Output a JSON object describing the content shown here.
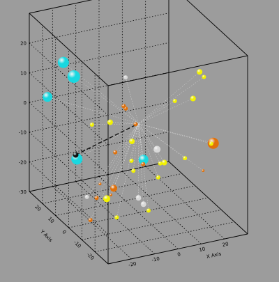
{
  "chart_data": {
    "type": "scatter",
    "dimensions": 3,
    "title": "",
    "xlabel": "X Axis",
    "ylabel": "Y Axis",
    "zlabel": "",
    "xlim": [
      -30,
      30
    ],
    "ylim": [
      -30,
      30
    ],
    "zlim": [
      -30,
      30
    ],
    "x_ticks": [
      "-20",
      "-10",
      "0",
      "10",
      "20"
    ],
    "y_ticks": [
      "-20",
      "-10",
      "0",
      "10",
      "20"
    ],
    "z_ticks": [
      "20",
      "10",
      "0",
      "-10",
      "-20",
      "-30"
    ],
    "grid": true,
    "legend": "none",
    "background_color": "#9c9c9c",
    "marker_colors": {
      "yellow": "#f2f200",
      "orange": "#e0700a",
      "cyan": "#19d8e0",
      "silver": "#d8d8d8",
      "black": "#101010"
    },
    "points": [
      {
        "x": -25,
        "y": 5,
        "z": 18,
        "size": 9,
        "color": "cyan"
      },
      {
        "x": -21,
        "y": 20,
        "z": 16,
        "size": 8,
        "color": "cyan"
      },
      {
        "x": -14,
        "y": -15,
        "z": 24,
        "size": 3,
        "color": "silver"
      },
      {
        "x": -12,
        "y": -10,
        "z": 12,
        "size": 3,
        "color": "orange"
      },
      {
        "x": -10,
        "y": -8,
        "z": 10,
        "size": 3,
        "color": "orange"
      },
      {
        "x": -8,
        "y": -12,
        "z": 6,
        "size": 3,
        "color": "orange"
      },
      {
        "x": -15,
        "y": -5,
        "z": 5,
        "size": 4,
        "color": "yellow"
      },
      {
        "x": -20,
        "y": 0,
        "z": 3,
        "size": 3,
        "color": "yellow"
      },
      {
        "x": -25,
        "y": 25,
        "z": 3,
        "size": 7,
        "color": "cyan"
      },
      {
        "x": -27,
        "y": 0,
        "z": -6,
        "size": 4,
        "color": "black"
      },
      {
        "x": -25,
        "y": -15,
        "z": -10,
        "size": 2,
        "color": "orange"
      },
      {
        "x": -22,
        "y": -18,
        "z": -13,
        "size": 2,
        "color": "orange"
      },
      {
        "x": -10,
        "y": 0,
        "z": -8,
        "size": 3,
        "color": "orange"
      },
      {
        "x": -5,
        "y": -5,
        "z": -13,
        "size": 3,
        "color": "yellow"
      },
      {
        "x": -3,
        "y": 0,
        "z": -12,
        "size": 3,
        "color": "yellow"
      },
      {
        "x": 0,
        "y": -15,
        "z": -12,
        "size": 3,
        "color": "yellow"
      },
      {
        "x": 0,
        "y": 5,
        "z": -8,
        "size": 4,
        "color": "yellow"
      },
      {
        "x": 2,
        "y": 0,
        "z": -14,
        "size": 3,
        "color": "orange"
      },
      {
        "x": 5,
        "y": 5,
        "z": -15,
        "size": 7,
        "color": "cyan"
      },
      {
        "x": 8,
        "y": 0,
        "z": -10,
        "size": 5,
        "color": "silver"
      },
      {
        "x": 10,
        "y": -2,
        "z": -14,
        "size": 4,
        "color": "yellow"
      },
      {
        "x": -18,
        "y": 15,
        "z": -15,
        "size": 8,
        "color": "cyan"
      },
      {
        "x": -15,
        "y": -10,
        "z": -25,
        "size": 3,
        "color": "yellow"
      },
      {
        "x": -18,
        "y": 0,
        "z": -22,
        "size": 3,
        "color": "orange"
      },
      {
        "x": -12,
        "y": 18,
        "z": -30,
        "size": 3,
        "color": "silver"
      },
      {
        "x": -8,
        "y": 10,
        "z": -28,
        "size": 5,
        "color": "yellow"
      },
      {
        "x": -5,
        "y": 10,
        "z": -25,
        "size": 5,
        "color": "orange"
      },
      {
        "x": -15,
        "y": 10,
        "z": -34,
        "size": 3,
        "color": "orange"
      },
      {
        "x": 0,
        "y": 0,
        "z": -25,
        "size": 4,
        "color": "silver"
      },
      {
        "x": 5,
        "y": 5,
        "z": -30,
        "size": 4,
        "color": "silver"
      },
      {
        "x": 10,
        "y": 10,
        "z": -35,
        "size": 3,
        "color": "yellow"
      },
      {
        "x": 15,
        "y": -20,
        "z": 23,
        "size": 4,
        "color": "yellow"
      },
      {
        "x": 18,
        "y": -18,
        "z": 20,
        "size": 3,
        "color": "yellow"
      },
      {
        "x": 15,
        "y": -15,
        "z": 12,
        "size": 4,
        "color": "yellow"
      },
      {
        "x": 10,
        "y": -10,
        "z": 10,
        "size": 3,
        "color": "yellow"
      },
      {
        "x": 22,
        "y": -18,
        "z": -3,
        "size": 8,
        "color": "orange"
      },
      {
        "x": 20,
        "y": -20,
        "z": -2,
        "size": 3,
        "color": "yellow"
      },
      {
        "x": 20,
        "y": 0,
        "z": -15,
        "size": 3,
        "color": "yellow"
      },
      {
        "x": 25,
        "y": -5,
        "z": -18,
        "size": 2,
        "color": "orange"
      },
      {
        "x": 15,
        "y": 10,
        "z": -20,
        "size": 3,
        "color": "yellow"
      }
    ]
  }
}
